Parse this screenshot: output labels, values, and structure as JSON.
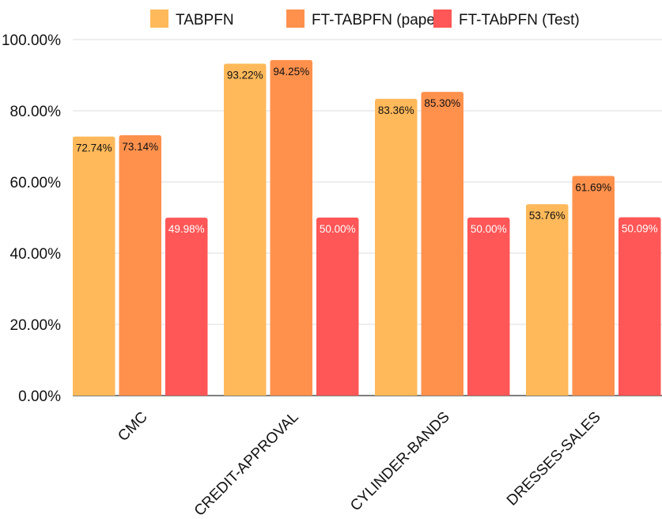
{
  "chart_data": {
    "type": "bar",
    "title": "",
    "xlabel": "",
    "ylabel": "",
    "ylim": [
      0,
      100
    ],
    "yticks": [
      0,
      20,
      40,
      60,
      80,
      100
    ],
    "ytick_labels": [
      "0.00%",
      "20.00%",
      "40.00%",
      "60.00%",
      "80.00%",
      "100.00%"
    ],
    "grid": true,
    "legend_position": "top",
    "categories": [
      "CMC",
      "CREDIT-APPROVAL",
      "CYLINDER-BANDS",
      "DRESSES-SALES"
    ],
    "series": [
      {
        "name": "TABPFN",
        "color": "#FFB95A",
        "label_color": "#111111",
        "values": [
          72.74,
          93.22,
          83.36,
          53.76
        ],
        "labels": [
          "72.74%",
          "93.22%",
          "83.36%",
          "53.76%"
        ]
      },
      {
        "name": "FT-TABPFN (paper)",
        "color": "#FF914D",
        "label_color": "#111111",
        "values": [
          73.14,
          94.25,
          85.3,
          61.69
        ],
        "labels": [
          "73.14%",
          "94.25%",
          "85.30%",
          "61.69%"
        ]
      },
      {
        "name": "FT-TAbPFN (Test)",
        "color": "#FF5757",
        "label_color": "#ffffff",
        "values": [
          49.98,
          50.0,
          50.0,
          50.09
        ],
        "labels": [
          "49.98%",
          "50.00%",
          "50.00%",
          "50.09%"
        ]
      }
    ]
  }
}
